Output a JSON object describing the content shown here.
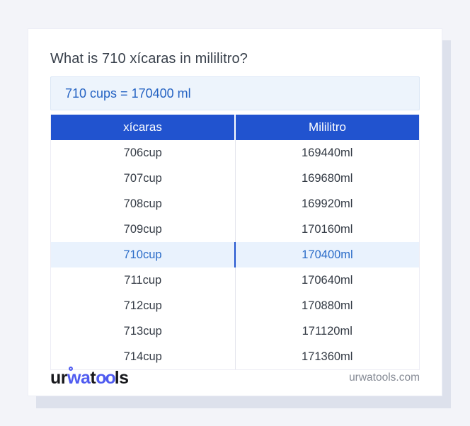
{
  "page": {
    "title": "What is 710 xícaras in mililitro?",
    "result_text": "710 cups = 170400 ml"
  },
  "table": {
    "headers": [
      "xícaras",
      "Mililitro"
    ],
    "highlighted_row_index": 4,
    "rows": [
      {
        "cup": "706cup",
        "ml": "169440ml"
      },
      {
        "cup": "707cup",
        "ml": "169680ml"
      },
      {
        "cup": "708cup",
        "ml": "169920ml"
      },
      {
        "cup": "709cup",
        "ml": "170160ml"
      },
      {
        "cup": "710cup",
        "ml": "170400ml"
      },
      {
        "cup": "711cup",
        "ml": "170640ml"
      },
      {
        "cup": "712cup",
        "ml": "170880ml"
      },
      {
        "cup": "713cup",
        "ml": "171120ml"
      },
      {
        "cup": "714cup",
        "ml": "171360ml"
      }
    ]
  },
  "footer": {
    "logo_part_ur": "ur",
    "logo_part_wa": "wa",
    "logo_part_t": "t",
    "logo_part_oo": "oo",
    "logo_part_ls": "ls",
    "site_label": "urwatools.com"
  },
  "colors": {
    "page_background": "#f3f4f9",
    "card_background": "#ffffff",
    "card_shadow": "#dde1ec",
    "header_blue": "#2153cf",
    "result_box_background": "#edf4fc",
    "result_text_blue": "#2563c3",
    "highlight_row_background": "#e9f2fd",
    "highlight_text_blue": "#2b6cc8",
    "title_color": "#39414c",
    "cell_text_color": "#333a44",
    "logo_blue": "#4f5bf0",
    "footer_gray": "#868b95"
  }
}
